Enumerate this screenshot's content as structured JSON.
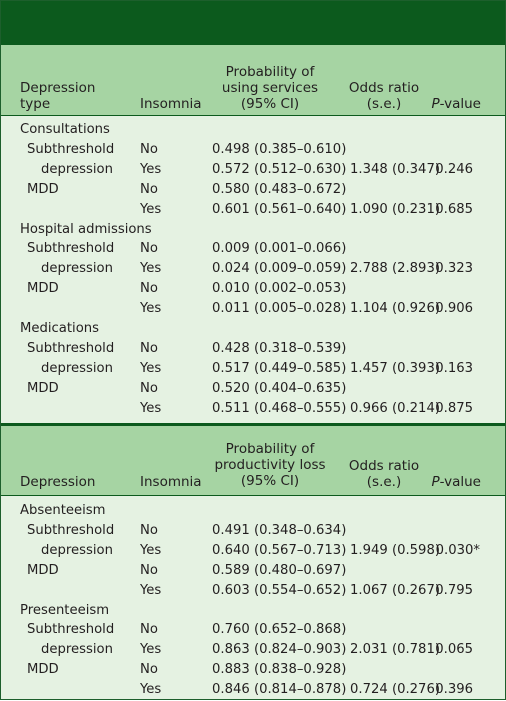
{
  "table1": {
    "headers": {
      "type_line1": "Depression",
      "type_line2": "type",
      "insomnia": "Insomnia",
      "prob_line1": "Probability of",
      "prob_line2": "using services",
      "prob_line3": "(95% CI)",
      "or_line1": "Odds ratio",
      "or_line2": "(s.e.)",
      "p_prefix": "P",
      "p_suffix": "-value"
    },
    "groups": [
      {
        "label": "Consultations",
        "rows": [
          {
            "type": "Subthreshold",
            "insomnia": "No",
            "prob": "0.498 (0.385–0.610)",
            "or": "",
            "p": ""
          },
          {
            "type": "depression",
            "insomnia": "Yes",
            "prob": "0.572 (0.512–0.630)",
            "or": "1.348 (0.347)",
            "p": "0.246"
          },
          {
            "type": "MDD",
            "insomnia": "No",
            "prob": "0.580 (0.483–0.672)",
            "or": "",
            "p": ""
          },
          {
            "type": "",
            "insomnia": "Yes",
            "prob": "0.601 (0.561–0.640)",
            "or": "1.090 (0.231)",
            "p": "0.685"
          }
        ]
      },
      {
        "label": "Hospital admissions",
        "rows": [
          {
            "type": "Subthreshold",
            "insomnia": "No",
            "prob": "0.009 (0.001–0.066)",
            "or": "",
            "p": ""
          },
          {
            "type": "depression",
            "insomnia": "Yes",
            "prob": "0.024 (0.009–0.059)",
            "or": "2.788 (2.893)",
            "p": "0.323"
          },
          {
            "type": "MDD",
            "insomnia": "No",
            "prob": "0.010 (0.002–0.053)",
            "or": "",
            "p": ""
          },
          {
            "type": "",
            "insomnia": "Yes",
            "prob": "0.011 (0.005–0.028)",
            "or": "1.104 (0.926)",
            "p": "0.906"
          }
        ]
      },
      {
        "label": "Medications",
        "rows": [
          {
            "type": "Subthreshold",
            "insomnia": "No",
            "prob": "0.428 (0.318–0.539)",
            "or": "",
            "p": ""
          },
          {
            "type": "depression",
            "insomnia": "Yes",
            "prob": "0.517 (0.449–0.585)",
            "or": "1.457 (0.393)",
            "p": "0.163"
          },
          {
            "type": "MDD",
            "insomnia": "No",
            "prob": "0.520 (0.404–0.635)",
            "or": "",
            "p": ""
          },
          {
            "type": "",
            "insomnia": "Yes",
            "prob": "0.511 (0.468–0.555)",
            "or": "0.966 (0.214)",
            "p": "0.875"
          }
        ]
      }
    ]
  },
  "table2": {
    "headers": {
      "type": "Depression",
      "insomnia": "Insomnia",
      "prob_line1": "Probability of",
      "prob_line2": "productivity loss",
      "prob_line3": "(95% CI)",
      "or_line1": "Odds ratio",
      "or_line2": "(s.e.)",
      "p_prefix": "P",
      "p_suffix": "-value"
    },
    "groups": [
      {
        "label": "Absenteeism",
        "rows": [
          {
            "type": "Subthreshold",
            "insomnia": "No",
            "prob": "0.491 (0.348–0.634)",
            "or": "",
            "p": ""
          },
          {
            "type": "depression",
            "insomnia": "Yes",
            "prob": "0.640 (0.567–0.713)",
            "or": "1.949 (0.598)",
            "p": "0.030*"
          },
          {
            "type": "MDD",
            "insomnia": "No",
            "prob": "0.589 (0.480–0.697)",
            "or": "",
            "p": ""
          },
          {
            "type": "",
            "insomnia": "Yes",
            "prob": "0.603 (0.554–0.652)",
            "or": "1.067 (0.267)",
            "p": "0.795"
          }
        ]
      },
      {
        "label": "Presenteeism",
        "rows": [
          {
            "type": "Subthreshold",
            "insomnia": "No",
            "prob": "0.760 (0.652–0.868)",
            "or": "",
            "p": ""
          },
          {
            "type": "depression",
            "insomnia": "Yes",
            "prob": "0.863 (0.824–0.903)",
            "or": "2.031 (0.781)",
            "p": "0.065"
          },
          {
            "type": "MDD",
            "insomnia": "No",
            "prob": "0.883 (0.838–0.928)",
            "or": "",
            "p": ""
          },
          {
            "type": "",
            "insomnia": "Yes",
            "prob": "0.846 (0.814–0.878)",
            "or": "0.724 (0.276)",
            "p": "0.396"
          }
        ]
      }
    ]
  }
}
